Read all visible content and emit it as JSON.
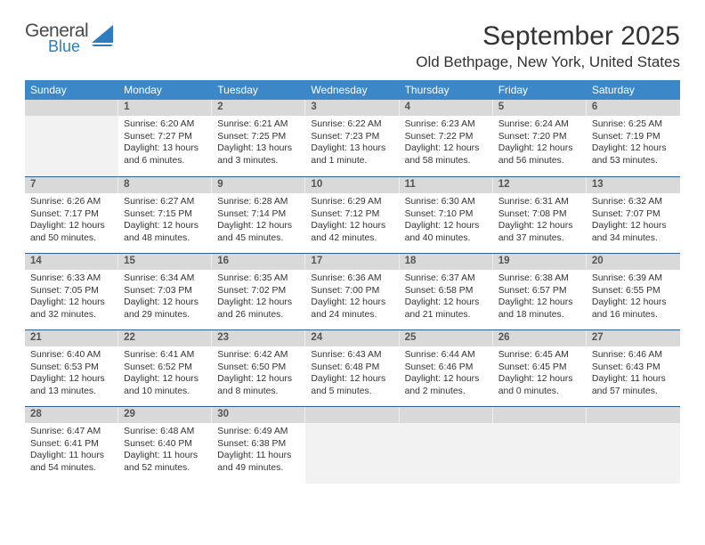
{
  "logo": {
    "text_general": "General",
    "text_blue": "Blue",
    "sail_color": "#2d7dc0",
    "general_color": "#4a4a4a"
  },
  "title": {
    "month_year": "September 2025",
    "location": "Old Bethpage, New York, United States"
  },
  "colors": {
    "header_bg": "#3b87c8",
    "header_text": "#ffffff",
    "daynum_bg": "#d9d9d9",
    "daynum_text": "#555555",
    "border": "#2d5f8f",
    "blank_bg": "#f2f2f2",
    "body_text": "#333333"
  },
  "day_headers": [
    "Sunday",
    "Monday",
    "Tuesday",
    "Wednesday",
    "Thursday",
    "Friday",
    "Saturday"
  ],
  "weeks": [
    [
      null,
      {
        "n": "1",
        "sr": "6:20 AM",
        "ss": "7:27 PM",
        "dl": "13 hours and 6 minutes."
      },
      {
        "n": "2",
        "sr": "6:21 AM",
        "ss": "7:25 PM",
        "dl": "13 hours and 3 minutes."
      },
      {
        "n": "3",
        "sr": "6:22 AM",
        "ss": "7:23 PM",
        "dl": "13 hours and 1 minute."
      },
      {
        "n": "4",
        "sr": "6:23 AM",
        "ss": "7:22 PM",
        "dl": "12 hours and 58 minutes."
      },
      {
        "n": "5",
        "sr": "6:24 AM",
        "ss": "7:20 PM",
        "dl": "12 hours and 56 minutes."
      },
      {
        "n": "6",
        "sr": "6:25 AM",
        "ss": "7:19 PM",
        "dl": "12 hours and 53 minutes."
      }
    ],
    [
      {
        "n": "7",
        "sr": "6:26 AM",
        "ss": "7:17 PM",
        "dl": "12 hours and 50 minutes."
      },
      {
        "n": "8",
        "sr": "6:27 AM",
        "ss": "7:15 PM",
        "dl": "12 hours and 48 minutes."
      },
      {
        "n": "9",
        "sr": "6:28 AM",
        "ss": "7:14 PM",
        "dl": "12 hours and 45 minutes."
      },
      {
        "n": "10",
        "sr": "6:29 AM",
        "ss": "7:12 PM",
        "dl": "12 hours and 42 minutes."
      },
      {
        "n": "11",
        "sr": "6:30 AM",
        "ss": "7:10 PM",
        "dl": "12 hours and 40 minutes."
      },
      {
        "n": "12",
        "sr": "6:31 AM",
        "ss": "7:08 PM",
        "dl": "12 hours and 37 minutes."
      },
      {
        "n": "13",
        "sr": "6:32 AM",
        "ss": "7:07 PM",
        "dl": "12 hours and 34 minutes."
      }
    ],
    [
      {
        "n": "14",
        "sr": "6:33 AM",
        "ss": "7:05 PM",
        "dl": "12 hours and 32 minutes."
      },
      {
        "n": "15",
        "sr": "6:34 AM",
        "ss": "7:03 PM",
        "dl": "12 hours and 29 minutes."
      },
      {
        "n": "16",
        "sr": "6:35 AM",
        "ss": "7:02 PM",
        "dl": "12 hours and 26 minutes."
      },
      {
        "n": "17",
        "sr": "6:36 AM",
        "ss": "7:00 PM",
        "dl": "12 hours and 24 minutes."
      },
      {
        "n": "18",
        "sr": "6:37 AM",
        "ss": "6:58 PM",
        "dl": "12 hours and 21 minutes."
      },
      {
        "n": "19",
        "sr": "6:38 AM",
        "ss": "6:57 PM",
        "dl": "12 hours and 18 minutes."
      },
      {
        "n": "20",
        "sr": "6:39 AM",
        "ss": "6:55 PM",
        "dl": "12 hours and 16 minutes."
      }
    ],
    [
      {
        "n": "21",
        "sr": "6:40 AM",
        "ss": "6:53 PM",
        "dl": "12 hours and 13 minutes."
      },
      {
        "n": "22",
        "sr": "6:41 AM",
        "ss": "6:52 PM",
        "dl": "12 hours and 10 minutes."
      },
      {
        "n": "23",
        "sr": "6:42 AM",
        "ss": "6:50 PM",
        "dl": "12 hours and 8 minutes."
      },
      {
        "n": "24",
        "sr": "6:43 AM",
        "ss": "6:48 PM",
        "dl": "12 hours and 5 minutes."
      },
      {
        "n": "25",
        "sr": "6:44 AM",
        "ss": "6:46 PM",
        "dl": "12 hours and 2 minutes."
      },
      {
        "n": "26",
        "sr": "6:45 AM",
        "ss": "6:45 PM",
        "dl": "12 hours and 0 minutes."
      },
      {
        "n": "27",
        "sr": "6:46 AM",
        "ss": "6:43 PM",
        "dl": "11 hours and 57 minutes."
      }
    ],
    [
      {
        "n": "28",
        "sr": "6:47 AM",
        "ss": "6:41 PM",
        "dl": "11 hours and 54 minutes."
      },
      {
        "n": "29",
        "sr": "6:48 AM",
        "ss": "6:40 PM",
        "dl": "11 hours and 52 minutes."
      },
      {
        "n": "30",
        "sr": "6:49 AM",
        "ss": "6:38 PM",
        "dl": "11 hours and 49 minutes."
      },
      null,
      null,
      null,
      null
    ]
  ],
  "labels": {
    "sunrise": "Sunrise:",
    "sunset": "Sunset:",
    "daylight": "Daylight:"
  }
}
